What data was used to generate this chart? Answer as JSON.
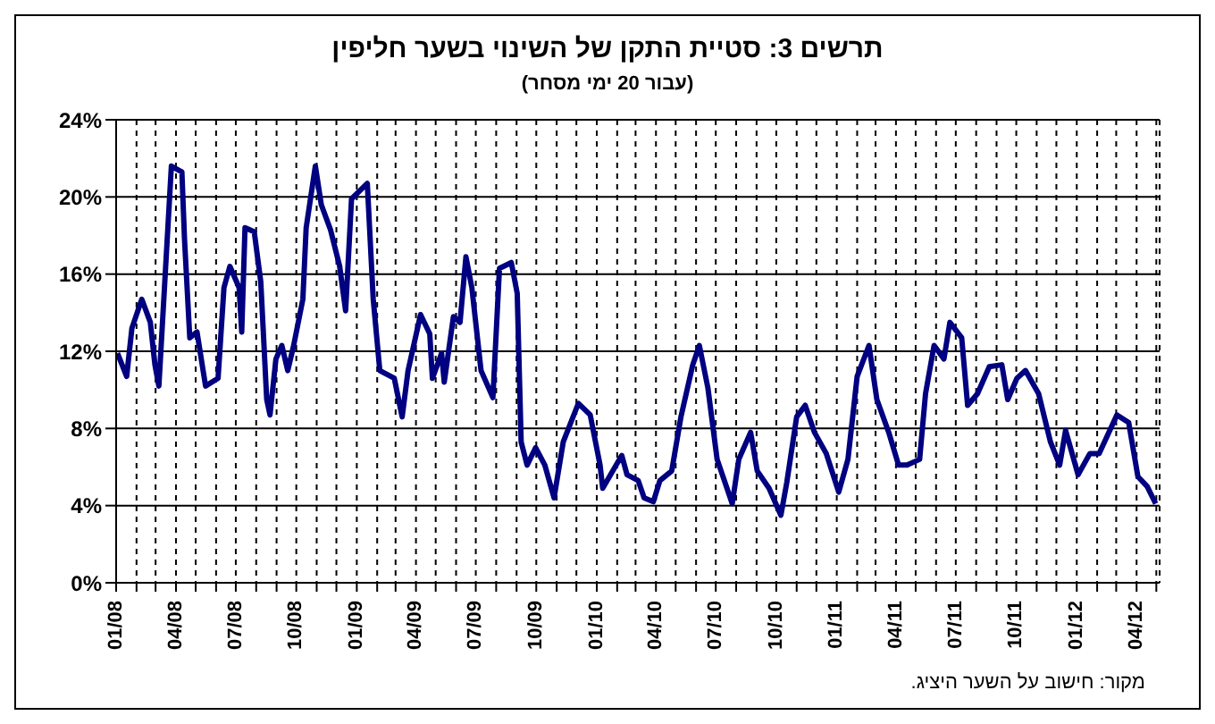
{
  "chart_data": {
    "type": "line",
    "title": "תרשים 3: סטיית התקן של השינוי בשער חליפין",
    "subtitle": "(עבור 20 ימי מסחר)",
    "annotations": [
      "מקור: חישוב על השער היציג."
    ],
    "x": [
      "2008-01-03",
      "2008-01-17",
      "2008-01-25",
      "2008-02-09",
      "2008-02-22",
      "2008-02-29",
      "2008-03-06",
      "2008-03-15",
      "2008-03-25",
      "2008-04-10",
      "2008-04-14",
      "2008-04-22",
      "2008-05-03",
      "2008-05-16",
      "2008-06-04",
      "2008-06-13",
      "2008-06-22",
      "2008-07-06",
      "2008-07-10",
      "2008-07-15",
      "2008-07-29",
      "2008-08-08",
      "2008-08-17",
      "2008-08-22",
      "2008-08-31",
      "2008-09-09",
      "2008-09-18",
      "2008-09-27",
      "2008-10-11",
      "2008-10-16",
      "2008-10-30",
      "2008-11-08",
      "2008-11-22",
      "2008-12-06",
      "2008-12-15",
      "2008-12-24",
      "2009-01-08",
      "2009-01-17",
      "2009-01-26",
      "2009-02-05",
      "2009-02-27",
      "2009-03-11",
      "2009-03-20",
      "2009-04-08",
      "2009-04-22",
      "2009-04-26",
      "2009-05-10",
      "2009-05-14",
      "2009-05-28",
      "2009-06-07",
      "2009-06-16",
      "2009-06-25",
      "2009-07-09",
      "2009-07-27",
      "2009-08-06",
      "2009-08-24",
      "2009-09-02",
      "2009-09-08",
      "2009-09-17",
      "2009-09-30",
      "2009-10-14",
      "2009-10-28",
      "2009-11-11",
      "2009-12-04",
      "2009-12-22",
      "2010-01-06",
      "2010-01-10",
      "2010-02-08",
      "2010-02-16",
      "2010-03-05",
      "2010-03-14",
      "2010-03-28",
      "2010-04-07",
      "2010-04-25",
      "2010-05-09",
      "2010-05-27",
      "2010-06-06",
      "2010-06-19",
      "2010-07-03",
      "2010-07-26",
      "2010-08-05",
      "2010-08-23",
      "2010-09-02",
      "2010-09-20",
      "2010-10-08",
      "2010-10-17",
      "2010-11-01",
      "2010-11-14",
      "2010-11-28",
      "2010-12-16",
      "2011-01-04",
      "2011-01-18",
      "2011-02-01",
      "2011-02-19",
      "2011-03-03",
      "2011-03-21",
      "2011-04-05",
      "2011-04-18",
      "2011-05-07",
      "2011-05-16",
      "2011-05-29",
      "2011-06-13",
      "2011-06-22",
      "2011-07-10",
      "2011-07-19",
      "2011-08-03",
      "2011-08-21",
      "2011-09-09",
      "2011-09-18",
      "2011-10-02",
      "2011-10-15",
      "2011-11-04",
      "2011-11-22",
      "2011-12-06",
      "2011-12-15",
      "2012-01-03",
      "2012-01-21",
      "2012-02-04",
      "2012-03-02",
      "2012-03-20",
      "2012-04-03",
      "2012-04-17",
      "2012-04-30"
    ],
    "series": [
      {
        "color": "#000080",
        "values": [
          11.9,
          10.7,
          13.2,
          14.7,
          13.5,
          11.3,
          10.2,
          15.6,
          21.6,
          21.3,
          17.8,
          12.7,
          13.0,
          10.2,
          10.6,
          15.3,
          16.4,
          15.3,
          13.0,
          18.4,
          18.2,
          15.6,
          9.5,
          8.7,
          11.6,
          12.3,
          11.0,
          12.3,
          14.7,
          18.4,
          21.6,
          19.6,
          18.3,
          16.4,
          14.1,
          19.9,
          20.4,
          20.7,
          14.7,
          11.0,
          10.6,
          8.6,
          11.0,
          13.9,
          12.9,
          10.6,
          11.9,
          10.4,
          13.8,
          13.5,
          16.9,
          15.3,
          11.0,
          9.6,
          16.3,
          16.6,
          15.0,
          7.3,
          6.1,
          7.0,
          6.1,
          4.4,
          7.3,
          9.3,
          8.7,
          6.1,
          4.9,
          6.6,
          5.6,
          5.3,
          4.4,
          4.2,
          5.3,
          5.8,
          8.6,
          11.3,
          12.3,
          10.1,
          6.4,
          4.1,
          6.4,
          7.8,
          5.8,
          4.9,
          3.5,
          5.2,
          8.6,
          9.2,
          7.8,
          6.7,
          4.7,
          6.4,
          10.7,
          12.3,
          9.5,
          7.8,
          6.1,
          6.1,
          6.4,
          9.8,
          12.3,
          11.6,
          13.5,
          12.7,
          9.2,
          9.8,
          11.2,
          11.3,
          9.5,
          10.6,
          11.0,
          9.8,
          7.3,
          6.1,
          7.9,
          5.6,
          6.7,
          6.7,
          8.7,
          8.3,
          5.5,
          5.0,
          4.1
        ]
      }
    ],
    "xlim": [
      "2008-01-01",
      "2012-05-06"
    ],
    "xticks": [
      {
        "value": "2008-01-01",
        "label": "01/08"
      },
      {
        "value": "2008-02-01",
        "label": null
      },
      {
        "value": "2008-03-01",
        "label": null
      },
      {
        "value": "2008-04-01",
        "label": "04/08"
      },
      {
        "value": "2008-05-01",
        "label": null
      },
      {
        "value": "2008-06-01",
        "label": null
      },
      {
        "value": "2008-07-01",
        "label": "07/08"
      },
      {
        "value": "2008-08-01",
        "label": null
      },
      {
        "value": "2008-09-01",
        "label": null
      },
      {
        "value": "2008-10-01",
        "label": "10/08"
      },
      {
        "value": "2008-11-01",
        "label": null
      },
      {
        "value": "2008-12-01",
        "label": null
      },
      {
        "value": "2009-01-01",
        "label": "01/09"
      },
      {
        "value": "2009-02-01",
        "label": null
      },
      {
        "value": "2009-03-01",
        "label": null
      },
      {
        "value": "2009-04-01",
        "label": "04/09"
      },
      {
        "value": "2009-05-01",
        "label": null
      },
      {
        "value": "2009-06-01",
        "label": null
      },
      {
        "value": "2009-07-01",
        "label": "07/09"
      },
      {
        "value": "2009-08-01",
        "label": null
      },
      {
        "value": "2009-09-01",
        "label": null
      },
      {
        "value": "2009-10-01",
        "label": "10/09"
      },
      {
        "value": "2009-11-01",
        "label": null
      },
      {
        "value": "2009-12-01",
        "label": null
      },
      {
        "value": "2010-01-01",
        "label": "01/10"
      },
      {
        "value": "2010-02-01",
        "label": null
      },
      {
        "value": "2010-03-01",
        "label": null
      },
      {
        "value": "2010-04-01",
        "label": "04/10"
      },
      {
        "value": "2010-05-01",
        "label": null
      },
      {
        "value": "2010-06-01",
        "label": null
      },
      {
        "value": "2010-07-01",
        "label": "07/10"
      },
      {
        "value": "2010-08-01",
        "label": null
      },
      {
        "value": "2010-09-01",
        "label": null
      },
      {
        "value": "2010-10-01",
        "label": "10/10"
      },
      {
        "value": "2010-11-01",
        "label": null
      },
      {
        "value": "2010-12-01",
        "label": null
      },
      {
        "value": "2011-01-01",
        "label": "01/11"
      },
      {
        "value": "2011-02-01",
        "label": null
      },
      {
        "value": "2011-03-01",
        "label": null
      },
      {
        "value": "2011-04-01",
        "label": "04/11"
      },
      {
        "value": "2011-05-01",
        "label": null
      },
      {
        "value": "2011-06-01",
        "label": null
      },
      {
        "value": "2011-07-01",
        "label": "07/11"
      },
      {
        "value": "2011-08-01",
        "label": null
      },
      {
        "value": "2011-09-01",
        "label": null
      },
      {
        "value": "2011-10-01",
        "label": "10/11"
      },
      {
        "value": "2011-11-01",
        "label": null
      },
      {
        "value": "2011-12-01",
        "label": null
      },
      {
        "value": "2012-01-01",
        "label": "01/12"
      },
      {
        "value": "2012-02-01",
        "label": null
      },
      {
        "value": "2012-03-01",
        "label": null
      },
      {
        "value": "2012-04-01",
        "label": "04/12"
      },
      {
        "value": "2012-05-01",
        "label": null
      }
    ],
    "ylim": [
      0,
      24
    ],
    "yticks": [
      {
        "value": 0,
        "label": "0%"
      },
      {
        "value": 4,
        "label": "4%"
      },
      {
        "value": 8,
        "label": "8%"
      },
      {
        "value": 12,
        "label": "12%"
      },
      {
        "value": 16,
        "label": "16%"
      },
      {
        "value": 20,
        "label": "20%"
      },
      {
        "value": 24,
        "label": "24%"
      }
    ],
    "grid": true,
    "marker": "none",
    "line_style": "solid"
  }
}
